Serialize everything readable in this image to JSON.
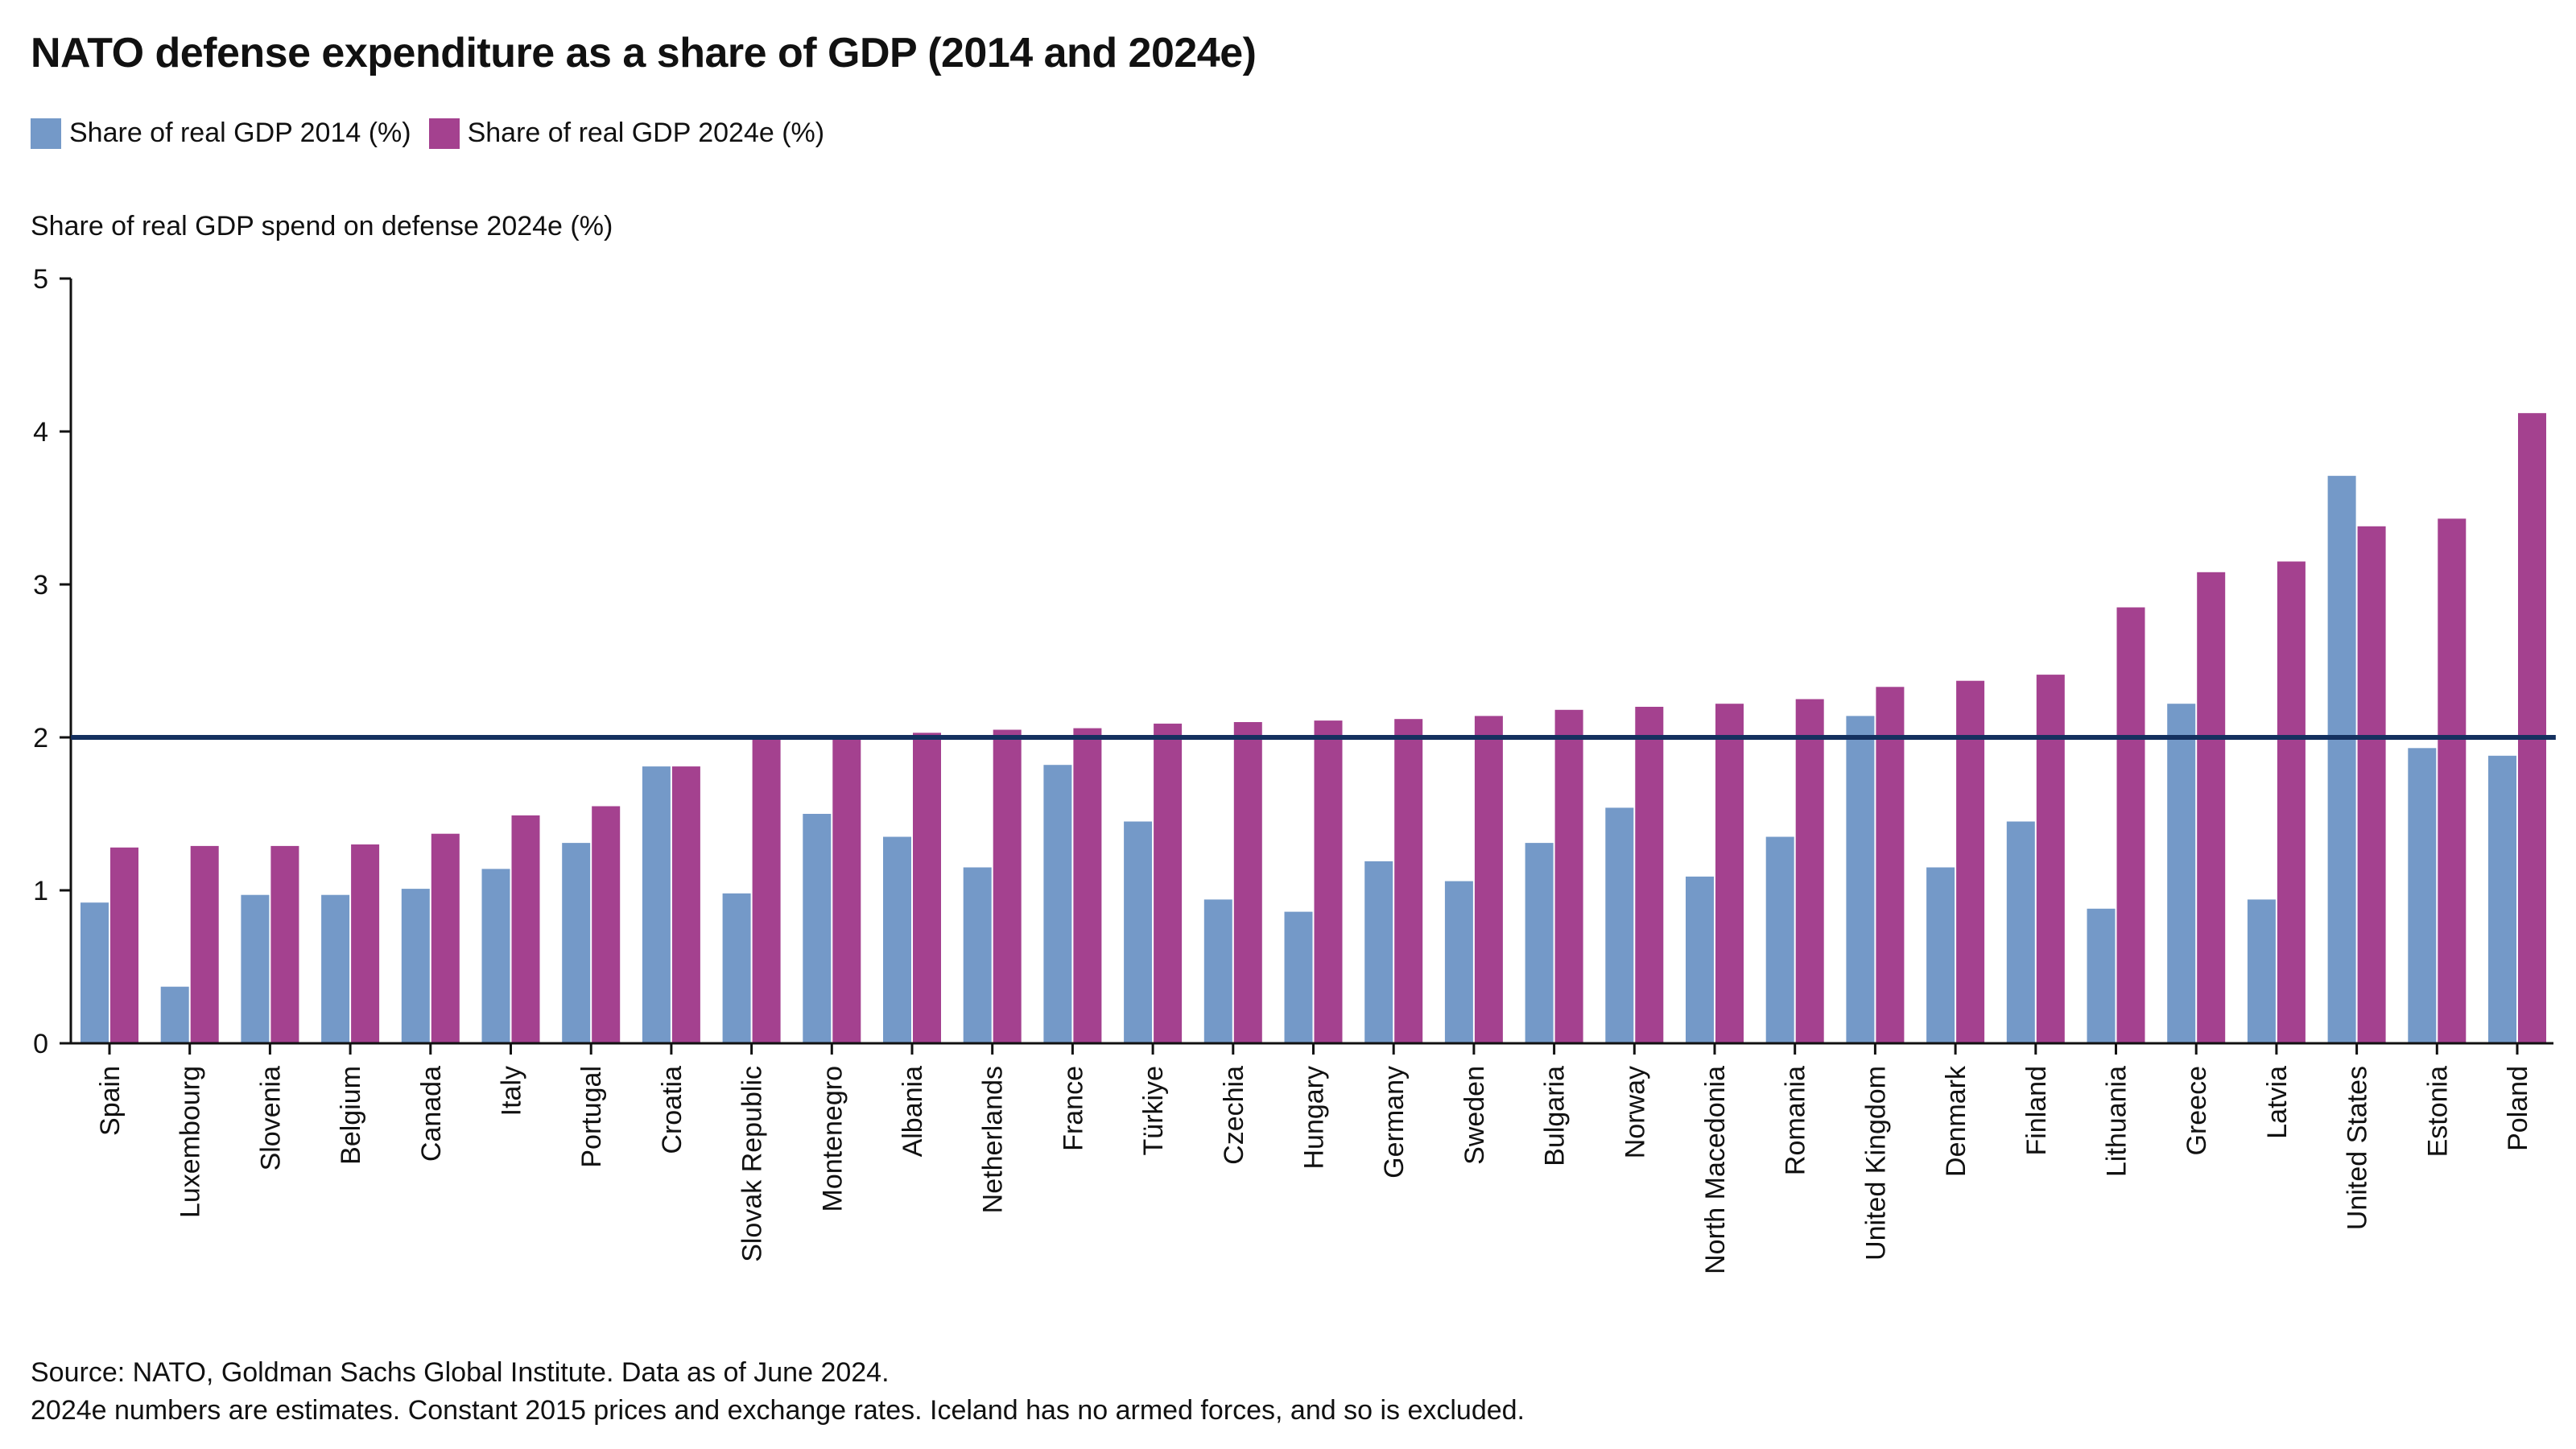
{
  "chart_data": {
    "type": "bar",
    "title": "NATO defense expenditure as a share of GDP (2014 and 2024e)",
    "ylabel": "Share of real GDP spend on defense 2024e (%)",
    "xlabel": "",
    "ylim": [
      0,
      5
    ],
    "yticks": [
      0,
      1,
      2,
      3,
      4,
      5
    ],
    "reference_line": 2,
    "legend_position": "top-left",
    "grid": false,
    "categories": [
      "Spain",
      "Luxembourg",
      "Slovenia",
      "Belgium",
      "Canada",
      "Italy",
      "Portugal",
      "Croatia",
      "Slovak Republic",
      "Montenegro",
      "Albania",
      "Netherlands",
      "France",
      "Türkiye",
      "Czechia",
      "Hungary",
      "Germany",
      "Sweden",
      "Bulgaria",
      "Norway",
      "North Macedonia",
      "Romania",
      "United Kingdom",
      "Denmark",
      "Finland",
      "Lithuania",
      "Greece",
      "Latvia",
      "United States",
      "Estonia",
      "Poland"
    ],
    "series": [
      {
        "name": "Share of real GDP 2014 (%)",
        "color": "#7499c8",
        "values": [
          0.92,
          0.37,
          0.97,
          0.97,
          1.01,
          1.14,
          1.31,
          1.81,
          0.98,
          1.5,
          1.35,
          1.15,
          1.82,
          1.45,
          0.94,
          0.86,
          1.19,
          1.06,
          1.31,
          1.54,
          1.09,
          1.35,
          2.14,
          1.15,
          1.45,
          0.88,
          2.22,
          0.94,
          3.71,
          1.93,
          1.88
        ]
      },
      {
        "name": "Share of real GDP 2024e (%)",
        "color": "#a4418f",
        "values": [
          1.28,
          1.29,
          1.29,
          1.3,
          1.37,
          1.49,
          1.55,
          1.81,
          2.0,
          2.0,
          2.03,
          2.05,
          2.06,
          2.09,
          2.1,
          2.11,
          2.12,
          2.14,
          2.18,
          2.2,
          2.22,
          2.25,
          2.33,
          2.37,
          2.41,
          2.85,
          3.08,
          3.15,
          3.38,
          3.43,
          4.12
        ]
      }
    ]
  },
  "colors": {
    "axis": "#111111",
    "reference_line": "#14305f"
  },
  "notes": {
    "source": "Source: NATO, Goldman Sachs Global Institute. Data as of June 2024.",
    "footnote": "2024e numbers are estimates. Constant 2015 prices and exchange rates. Iceland has no armed forces, and so is excluded."
  }
}
